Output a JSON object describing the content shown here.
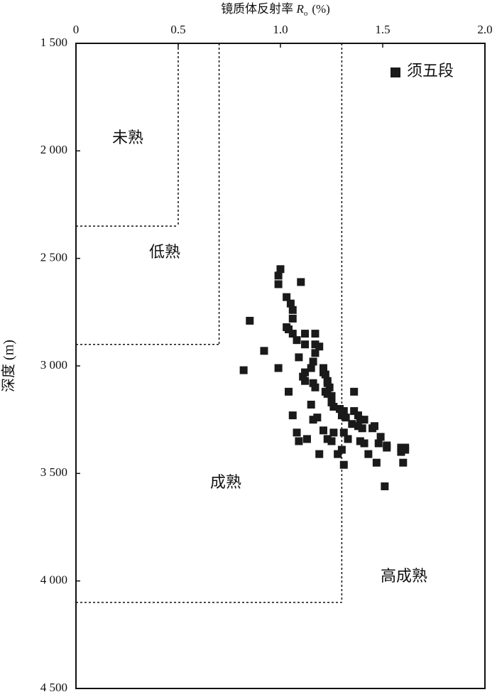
{
  "chart_data": {
    "type": "scatter",
    "x_label": [
      "镜质体反射率",
      "R",
      "o",
      "(%)"
    ],
    "y_label": "深度 (m)",
    "xlim": [
      0,
      2
    ],
    "ylim": [
      1500,
      4500
    ],
    "xticks": [
      0,
      0.5,
      {
        "value": 1,
        "label": "1.0"
      },
      1.5,
      {
        "value": 2,
        "label": "2.0"
      }
    ],
    "yticks": [
      {
        "value": 1500,
        "label": "1 500"
      },
      {
        "value": 2000,
        "label": "2 000"
      },
      {
        "value": 2500,
        "label": "2 500"
      },
      {
        "value": 3000,
        "label": "3 000"
      },
      {
        "value": 3500,
        "label": "3 500"
      },
      {
        "value": 4000,
        "label": "4 000"
      },
      {
        "value": 4500,
        "label": "4 500"
      }
    ],
    "y_inverted": true,
    "legend": "upper right",
    "zone_labels": [
      "未熟",
      "低熟",
      "成熟",
      "高成熟"
    ],
    "zone_boundaries": [
      {
        "ro": 0.5,
        "depth": 2350
      },
      {
        "ro": 0.7,
        "depth": 2900
      },
      {
        "ro": 1.3,
        "depth": 4100
      }
    ],
    "series": [
      {
        "name": "须五段",
        "color": "#1a1a1a",
        "x": [
          1.0,
          0.99,
          0.99,
          1.1,
          1.03,
          1.05,
          1.06,
          1.06,
          0.85,
          1.03,
          1.04,
          1.06,
          1.12,
          1.17,
          1.08,
          1.12,
          1.17,
          1.19,
          0.92,
          1.17,
          1.09,
          1.16,
          0.99,
          1.12,
          1.15,
          1.21,
          0.82,
          1.21,
          1.11,
          1.22,
          1.23,
          1.12,
          1.16,
          1.17,
          1.23,
          1.24,
          1.04,
          1.22,
          1.23,
          1.25,
          1.36,
          1.15,
          1.25,
          1.26,
          1.29,
          1.31,
          1.06,
          1.16,
          1.3,
          1.36,
          1.38,
          1.32,
          1.39,
          1.41,
          1.18,
          1.35,
          1.38,
          1.45,
          1.08,
          1.21,
          1.26,
          1.31,
          1.4,
          1.46,
          1.09,
          1.13,
          1.23,
          1.25,
          1.33,
          1.39,
          1.49,
          1.41,
          1.48,
          1.52,
          1.59,
          1.61,
          1.61,
          1.59,
          1.52,
          1.3,
          1.19,
          1.28,
          1.43,
          1.47,
          1.6,
          1.31,
          1.51
        ],
        "values": [
          2550,
          2580,
          2620,
          2610,
          2680,
          2710,
          2740,
          2780,
          2790,
          2820,
          2830,
          2850,
          2850,
          2850,
          2880,
          2900,
          2900,
          2910,
          2930,
          2940,
          2960,
          2980,
          3010,
          3030,
          3010,
          3010,
          3020,
          3030,
          3050,
          3040,
          3070,
          3070,
          3080,
          3100,
          3080,
          3100,
          3120,
          3120,
          3130,
          3140,
          3120,
          3180,
          3170,
          3190,
          3200,
          3210,
          3230,
          3250,
          3230,
          3210,
          3230,
          3240,
          3250,
          3250,
          3240,
          3270,
          3280,
          3290,
          3310,
          3300,
          3310,
          3310,
          3290,
          3280,
          3350,
          3340,
          3340,
          3350,
          3340,
          3350,
          3330,
          3360,
          3360,
          3370,
          3380,
          3380,
          3390,
          3400,
          3380,
          3390,
          3410,
          3410,
          3410,
          3450,
          3450,
          3460,
          3560
        ]
      }
    ]
  }
}
